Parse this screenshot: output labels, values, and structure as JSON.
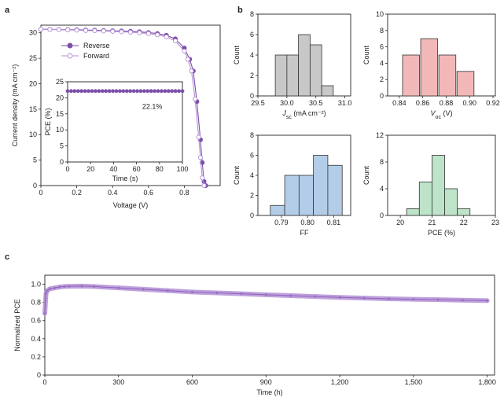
{
  "panels": {
    "a": "a",
    "b": "b",
    "c": "c"
  },
  "chart_data": [
    {
      "id": "a-jv",
      "type": "line",
      "xlabel": "Voltage (V)",
      "ylabel": "Current density (mA cm⁻²)",
      "xlim": [
        0,
        1.0
      ],
      "ylim": [
        0,
        31.5
      ],
      "xticks": [
        "0",
        "0.2",
        "0.4",
        "0.6",
        "0.8"
      ],
      "xtick_values": [
        0,
        0.2,
        0.4,
        0.6,
        0.8
      ],
      "yticks": [
        "0",
        "5",
        "10",
        "15",
        "20",
        "25",
        "30"
      ],
      "ytick_values": [
        0,
        5,
        10,
        15,
        20,
        25,
        30
      ],
      "legend": "upper-right",
      "series": [
        {
          "name": "Reverse",
          "color": "#7b4fa8",
          "marker": "filled",
          "x": [
            0,
            0.05,
            0.1,
            0.15,
            0.2,
            0.25,
            0.3,
            0.35,
            0.4,
            0.45,
            0.5,
            0.55,
            0.6,
            0.65,
            0.7,
            0.75,
            0.8,
            0.83,
            0.85,
            0.87,
            0.89,
            0.9,
            0.91,
            0.92
          ],
          "y": [
            30.7,
            30.68,
            30.65,
            30.62,
            30.6,
            30.55,
            30.5,
            30.45,
            30.4,
            30.35,
            30.3,
            30.2,
            30.05,
            29.85,
            29.5,
            28.8,
            27.0,
            24.8,
            22.5,
            16.5,
            9.0,
            4.5,
            0.8,
            0
          ]
        },
        {
          "name": "Forward",
          "color": "#b48fd6",
          "marker": "open",
          "x": [
            0,
            0.05,
            0.1,
            0.15,
            0.2,
            0.25,
            0.3,
            0.35,
            0.4,
            0.45,
            0.5,
            0.55,
            0.6,
            0.65,
            0.7,
            0.75,
            0.8,
            0.82,
            0.84,
            0.86,
            0.88,
            0.89,
            0.9,
            0.91
          ],
          "y": [
            30.7,
            30.66,
            30.62,
            30.58,
            30.52,
            30.45,
            30.4,
            30.35,
            30.28,
            30.2,
            30.12,
            30.0,
            29.85,
            29.6,
            29.2,
            28.4,
            26.4,
            24.8,
            22.5,
            17.0,
            9.5,
            5.5,
            1.5,
            0
          ]
        }
      ]
    },
    {
      "id": "a-inset",
      "type": "line",
      "xlabel": "Time (s)",
      "ylabel": "PCE (%)",
      "xlim": [
        0,
        100
      ],
      "ylim": [
        0,
        25
      ],
      "xticks": [
        "0",
        "20",
        "40",
        "60",
        "80",
        "100"
      ],
      "xtick_values": [
        0,
        20,
        40,
        60,
        80,
        100
      ],
      "yticks": [
        "0",
        "5",
        "10",
        "15",
        "20",
        "25"
      ],
      "ytick_values": [
        0,
        5,
        10,
        15,
        20,
        25
      ],
      "annotation": "22.1%",
      "series": [
        {
          "name": "",
          "color": "#7b4fa8",
          "constant": 22.1,
          "points": 34
        }
      ]
    },
    {
      "id": "b-jsc",
      "type": "bar",
      "xlabel_main": "J",
      "xlabel_sub": "sc",
      "xlabel_rest": " (mA cm⁻²)",
      "ylabel": "Count",
      "color": "#c8c8c8",
      "xlim": [
        29.5,
        31.1
      ],
      "ylim": [
        0,
        8
      ],
      "bin_width": 0.2,
      "x": [
        29.9,
        30.1,
        30.3,
        30.5,
        30.7,
        30.9
      ],
      "values": [
        4,
        4,
        6,
        5,
        1,
        0
      ],
      "xticks": [
        "29.5",
        "30.0",
        "30.5",
        "31.0"
      ],
      "xtick_values": [
        29.5,
        30.0,
        30.5,
        31.0
      ],
      "yticks": [
        "0",
        "2",
        "4",
        "6",
        "8"
      ],
      "ytick_values": [
        0,
        2,
        4,
        6,
        8
      ]
    },
    {
      "id": "b-voc",
      "type": "bar",
      "xlabel_main": "V",
      "xlabel_sub": "oc",
      "xlabel_rest": " (V)",
      "ylabel": "Count",
      "color": "#f2b8b8",
      "xlim": [
        0.83,
        0.922
      ],
      "ylim": [
        0,
        10
      ],
      "bin_width": 0.0145,
      "x": [
        0.85,
        0.8655,
        0.881,
        0.8965
      ],
      "values": [
        5,
        7,
        5,
        3
      ],
      "xticks": [
        "0.84",
        "0.86",
        "0.88",
        "0.90",
        "0.92"
      ],
      "xtick_values": [
        0.84,
        0.86,
        0.88,
        0.9,
        0.92
      ],
      "yticks": [
        "0",
        "2",
        "4",
        "6",
        "8",
        "10"
      ],
      "ytick_values": [
        0,
        2,
        4,
        6,
        8,
        10
      ]
    },
    {
      "id": "b-ff",
      "type": "bar",
      "xlabel_main": "FF",
      "xlabel_sub": "",
      "xlabel_rest": "",
      "ylabel": "Count",
      "color": "#b3cde8",
      "xlim": [
        0.781,
        0.8165
      ],
      "ylim": [
        0,
        8
      ],
      "bin_width": 0.0055,
      "x": [
        0.7885,
        0.794,
        0.7995,
        0.805,
        0.8105
      ],
      "values": [
        1,
        4,
        4,
        6,
        5
      ],
      "xticks": [
        "0.79",
        "0.80",
        "0.81"
      ],
      "xtick_values": [
        0.79,
        0.8,
        0.81
      ],
      "yticks": [
        "0",
        "2",
        "4",
        "6",
        "8"
      ],
      "ytick_values": [
        0,
        2,
        4,
        6,
        8
      ]
    },
    {
      "id": "b-pce",
      "type": "bar",
      "xlabel_main": "PCE (%)",
      "xlabel_sub": "",
      "xlabel_rest": "",
      "ylabel": "Count",
      "color": "#bde3c8",
      "xlim": [
        19.6,
        23.0
      ],
      "ylim": [
        0,
        12
      ],
      "bin_width": 0.4,
      "x": [
        20.4,
        20.8,
        21.2,
        21.6,
        22.0
      ],
      "values": [
        1,
        5,
        9,
        4,
        1
      ],
      "xticks": [
        "20",
        "21",
        "22",
        "23"
      ],
      "xtick_values": [
        20,
        21,
        22,
        23
      ],
      "yticks": [
        "0",
        "4",
        "8",
        "12"
      ],
      "ytick_values": [
        0,
        4,
        8,
        12
      ]
    },
    {
      "id": "c-stability",
      "type": "line",
      "xlabel": "Time (h)",
      "ylabel": "Normalized PCE",
      "color": "#b48fd6",
      "xlim": [
        0,
        1830
      ],
      "ylim": [
        0,
        1.1
      ],
      "x": [
        0,
        5,
        10,
        20,
        40,
        60,
        80,
        100,
        150,
        200,
        300,
        400,
        500,
        600,
        700,
        800,
        900,
        1000,
        1100,
        1200,
        1300,
        1400,
        1500,
        1600,
        1700,
        1800
      ],
      "y": [
        0.68,
        0.9,
        0.93,
        0.95,
        0.96,
        0.97,
        0.975,
        0.978,
        0.98,
        0.975,
        0.96,
        0.945,
        0.93,
        0.915,
        0.905,
        0.895,
        0.885,
        0.875,
        0.865,
        0.855,
        0.848,
        0.84,
        0.835,
        0.83,
        0.825,
        0.82
      ],
      "xticks": [
        "0",
        "300",
        "600",
        "900",
        "1,200",
        "1,500",
        "1,800"
      ],
      "xtick_values": [
        0,
        300,
        600,
        900,
        1200,
        1500,
        1800
      ],
      "yticks": [
        "0",
        "0.2",
        "0.4",
        "0.6",
        "0.8",
        "1.0"
      ],
      "ytick_values": [
        0,
        0.2,
        0.4,
        0.6,
        0.8,
        1.0
      ]
    }
  ]
}
